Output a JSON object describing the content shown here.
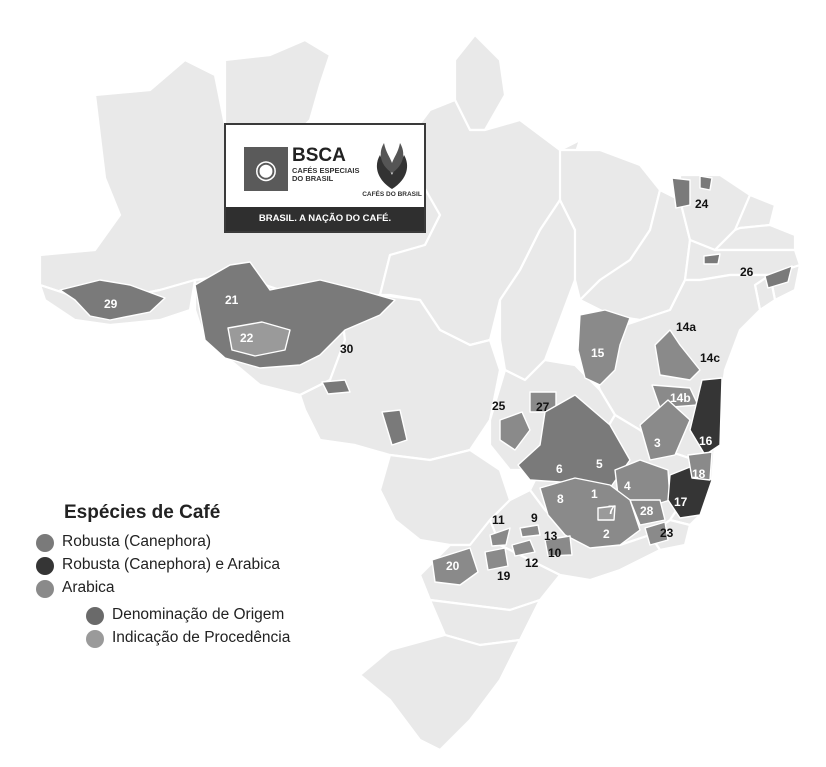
{
  "logo": {
    "brand_name": "BSCA",
    "brand_subtitle": "CAFÉS ESPECIAIS DO BRASIL",
    "partner_text": "CAFÉS DO BRASIL",
    "tagline": "BRASIL. A NAÇÃO DO CAFÉ."
  },
  "legend": {
    "title": "Espécies de Café",
    "items": [
      {
        "label": "Robusta (Canephora)",
        "color": "#7a7a7a"
      },
      {
        "label": "Robusta (Canephora) e Arabica",
        "color": "#353535"
      },
      {
        "label": "Arabica",
        "color": "#8a8a8a"
      },
      {
        "label": "Denominação de Origem",
        "color": "#6a6a6a"
      },
      {
        "label": "Indicação de Procedência",
        "color": "#9a9a9a"
      }
    ]
  },
  "region_labels": [
    "1",
    "2",
    "3",
    "4",
    "5",
    "6",
    "7",
    "8",
    "9",
    "10",
    "11",
    "12",
    "13",
    "14a",
    "14b",
    "14c",
    "15",
    "16",
    "17",
    "18",
    "19",
    "20",
    "21",
    "22",
    "23",
    "24",
    "25",
    "26",
    "27",
    "28",
    "29",
    "30"
  ],
  "colors": {
    "state_fill": "#e9e9e9",
    "robusta": "#7a7a7a",
    "mixed": "#353535",
    "arabica": "#8a8a8a",
    "denominacao": "#6a6a6a",
    "indicacao": "#9a9a9a"
  }
}
